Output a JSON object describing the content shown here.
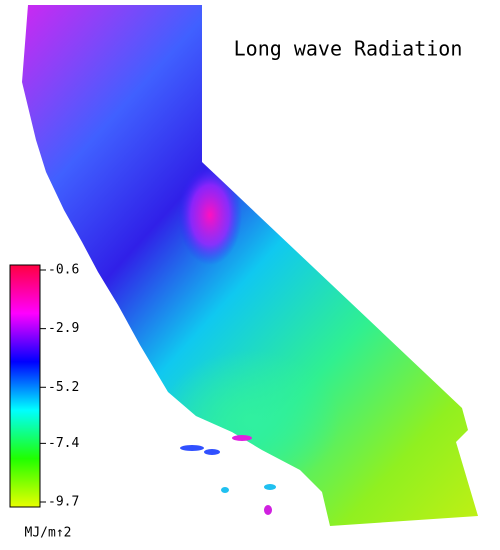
{
  "title": "Long wave Radiation",
  "colorbar": {
    "clim": [
      -9.7,
      -0.6
    ],
    "ticks": [
      -0.6,
      -2.9,
      -5.2,
      -7.4,
      -9.7
    ],
    "unit": "MJ/m↑2",
    "colors": [
      "#e8ff00",
      "#20ff00",
      "#00ffff",
      "#0000ff",
      "#ff00ff",
      "#ff0040"
    ]
  }
}
